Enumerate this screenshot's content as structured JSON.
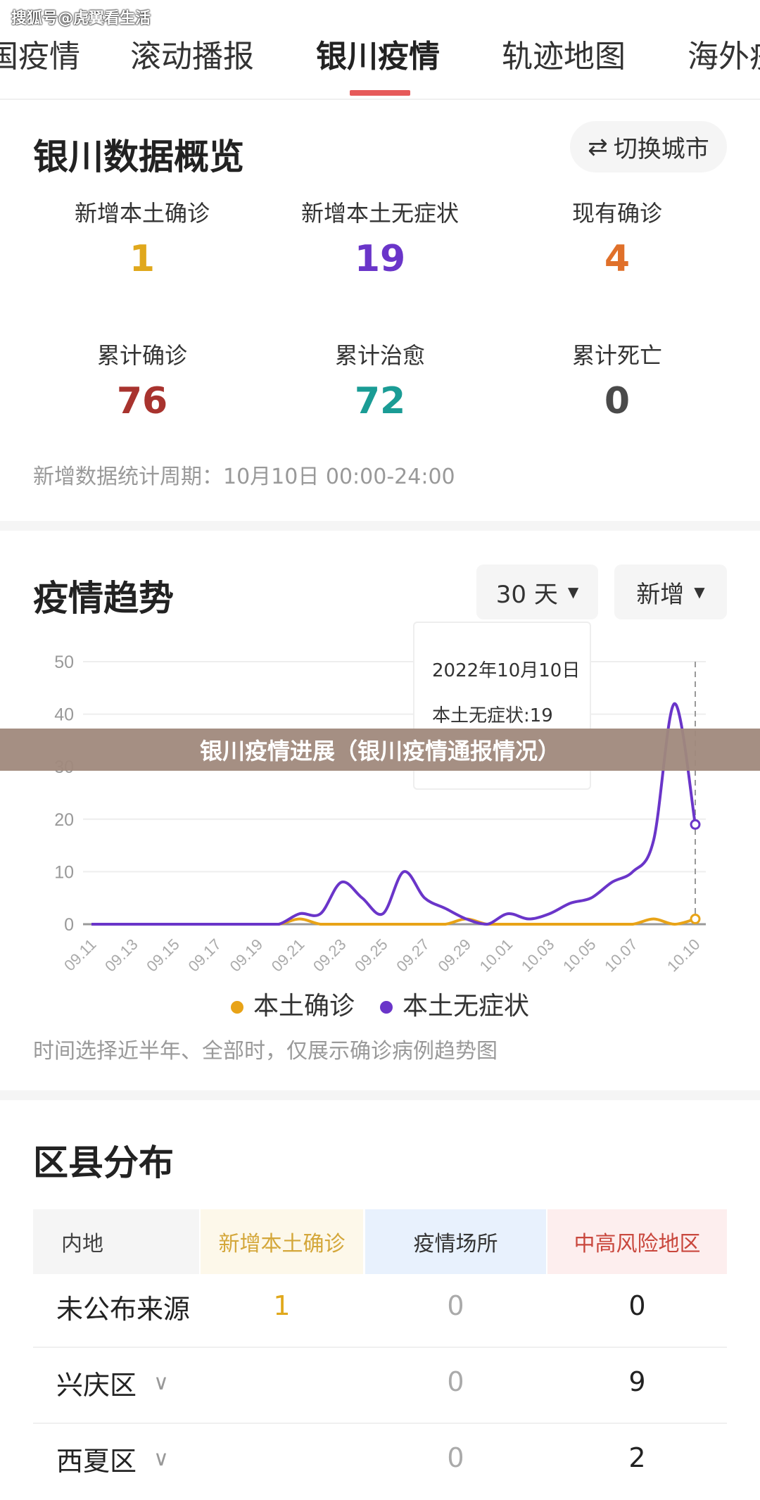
{
  "watermark": "搜狐号@虎翼看生活",
  "tabs": [
    {
      "label": "国疫情"
    },
    {
      "label": "滚动播报"
    },
    {
      "label": "银川疫情",
      "active": true
    },
    {
      "label": "轨迹地图"
    },
    {
      "label": "海外疫"
    }
  ],
  "overview": {
    "title": "银川数据概览",
    "switch_city": "切换城市",
    "switch_icon": "swap-arrows-icon",
    "stats": [
      {
        "label": "新增本土确诊",
        "value": "1",
        "color": "#e0a81c"
      },
      {
        "label": "新增本土无症状",
        "value": "19",
        "color": "#6a35c9"
      },
      {
        "label": "现有确诊",
        "value": "4",
        "color": "#e0702a"
      },
      {
        "label": "累计确诊",
        "value": "76",
        "color": "#a8332e"
      },
      {
        "label": "累计治愈",
        "value": "72",
        "color": "#1a9c95"
      },
      {
        "label": "累计死亡",
        "value": "0",
        "color": "#4a4a4a"
      }
    ],
    "period_note": "新增数据统计周期：10月10日 00:00-24:00"
  },
  "trend": {
    "title": "疫情趋势",
    "range_select": "30 天",
    "type_select": "新增",
    "tooltip": {
      "date": "2022年10月10日",
      "line": "本土无症状:19"
    },
    "note": "时间选择近半年、全部时，仅展示确诊病例趋势图"
  },
  "banner": "银川疫情进展（银川疫情通报情况）",
  "chart_data": {
    "type": "line",
    "ylim": [
      0,
      50
    ],
    "yticks": [
      0,
      10,
      20,
      30,
      40,
      50
    ],
    "grid": true,
    "legend_position": "bottom",
    "xticks": [
      "09.11",
      "09.13",
      "09.15",
      "09.17",
      "09.19",
      "09.21",
      "09.23",
      "09.25",
      "09.27",
      "09.29",
      "10.01",
      "10.03",
      "10.05",
      "10.07",
      "10.10"
    ],
    "x": [
      "09.11",
      "09.12",
      "09.13",
      "09.14",
      "09.15",
      "09.16",
      "09.17",
      "09.18",
      "09.19",
      "09.20",
      "09.21",
      "09.22",
      "09.23",
      "09.24",
      "09.25",
      "09.26",
      "09.27",
      "09.28",
      "09.29",
      "09.30",
      "10.01",
      "10.02",
      "10.03",
      "10.04",
      "10.05",
      "10.06",
      "10.07",
      "10.08",
      "10.09",
      "10.10"
    ],
    "series": [
      {
        "name": "本土确诊",
        "color": "#e8a317",
        "values": [
          0,
          0,
          0,
          0,
          0,
          0,
          0,
          0,
          0,
          0,
          1,
          0,
          0,
          0,
          0,
          0,
          0,
          0,
          1,
          0,
          0,
          0,
          0,
          0,
          0,
          0,
          0,
          1,
          0,
          1
        ]
      },
      {
        "name": "本土无症状",
        "color": "#6a35c9",
        "values": [
          0,
          0,
          0,
          0,
          0,
          0,
          0,
          0,
          0,
          0,
          2,
          2,
          8,
          5,
          2,
          10,
          5,
          3,
          1,
          0,
          2,
          1,
          2,
          4,
          5,
          8,
          10,
          16,
          42,
          19
        ]
      }
    ]
  },
  "district": {
    "title": "区县分布",
    "headers": [
      {
        "label": "内地",
        "bg": "#f5f5f5",
        "color": "#444"
      },
      {
        "label": "新增本土确诊",
        "bg": "#fdf8ea",
        "color": "#d4a73a"
      },
      {
        "label": "疫情场所",
        "bg": "#e8f1fd",
        "color": "#333"
      },
      {
        "label": "中高风险地区",
        "bg": "#fdeeee",
        "color": "#c9473d"
      }
    ],
    "rows": [
      {
        "name": "未公布来源",
        "new": "1",
        "places": "0",
        "risk": "0",
        "expandable": false
      },
      {
        "name": "兴庆区",
        "new": "",
        "places": "0",
        "risk": "9",
        "expandable": true
      },
      {
        "name": "西夏区",
        "new": "",
        "places": "0",
        "risk": "2",
        "expandable": true
      }
    ]
  }
}
